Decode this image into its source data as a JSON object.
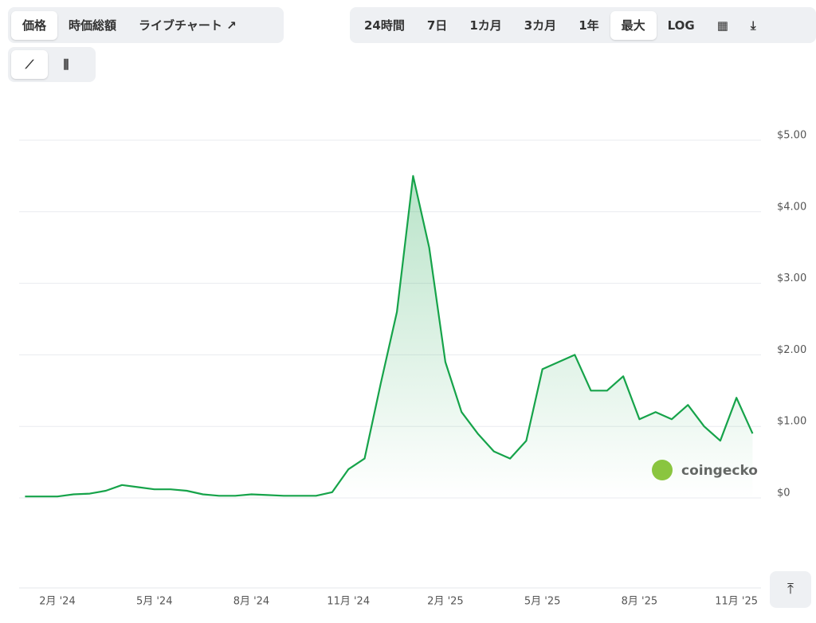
{
  "tabs": [
    "価格",
    "時価総額",
    "ライブチャート"
  ],
  "ranges": [
    "24時間",
    "7日",
    "1カ月",
    "3カ月",
    "1年",
    "最大",
    "LOG"
  ],
  "watermark": "coingecko",
  "chart_data": {
    "type": "line",
    "categories": [
      null,
      null,
      "2月 '24",
      null,
      null,
      null,
      null,
      null,
      "5月 '24",
      null,
      null,
      null,
      null,
      null,
      "8月 '24",
      null,
      null,
      null,
      null,
      null,
      "11月 '24",
      null,
      null,
      null,
      null,
      null,
      "2月 '25",
      null,
      null,
      null,
      null,
      null,
      "5月 '25",
      null,
      null,
      null,
      null,
      null,
      "8月 '25",
      null,
      null,
      null,
      null,
      null,
      "11月 '25",
      null
    ],
    "series": [
      {
        "color": "#16a34a",
        "values": [
          0.02,
          0.02,
          0.02,
          0.05,
          0.06,
          0.1,
          0.18,
          0.15,
          0.12,
          0.12,
          0.1,
          0.05,
          0.03,
          0.03,
          0.05,
          0.04,
          0.03,
          0.03,
          0.03,
          0.08,
          0.4,
          0.55,
          1.6,
          2.6,
          4.5,
          3.5,
          1.9,
          1.2,
          0.9,
          0.65,
          0.55,
          0.8,
          1.8,
          1.9,
          2.0,
          1.5,
          1.5,
          1.7,
          1.1,
          1.2,
          1.1,
          1.3,
          1.0,
          0.8,
          1.4,
          0.9
        ]
      }
    ],
    "ylim": [
      0,
      5
    ],
    "yticks": [
      {
        "value": 0,
        "label": "$0"
      },
      {
        "value": 1,
        "label": "$1.00"
      },
      {
        "value": 2,
        "label": "$2.00"
      },
      {
        "value": 3,
        "label": "$3.00"
      },
      {
        "value": 4,
        "label": "$4.00"
      },
      {
        "value": 5,
        "label": "$5.00"
      }
    ],
    "grid": true
  }
}
